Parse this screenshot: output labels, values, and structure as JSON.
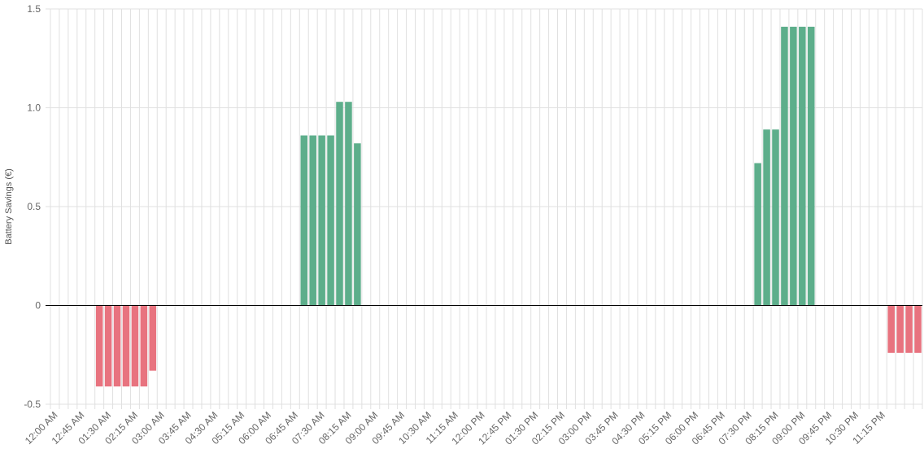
{
  "chart_data": {
    "type": "bar",
    "title": "",
    "xlabel": "",
    "ylabel": "Battery Savings (€)",
    "ylim": [
      -0.5,
      1.5
    ],
    "yticks": [
      -0.5,
      0,
      0.5,
      1.0,
      1.5
    ],
    "ytick_labels": [
      "-0.5",
      "0",
      "0.5",
      "1.0",
      "1.5"
    ],
    "grid": true,
    "legend": "none",
    "colors": {
      "positive": "#5dae8b",
      "negative": "#e8737f",
      "grid": "#e0e0e0",
      "zero_line": "#000000"
    },
    "x_labels": [
      "12:00 AM",
      "12:45 AM",
      "01:30 AM",
      "02:15 AM",
      "03:00 AM",
      "03:45 AM",
      "04:30 AM",
      "05:15 AM",
      "06:00 AM",
      "06:45 AM",
      "07:30 AM",
      "08:15 AM",
      "09:00 AM",
      "09:45 AM",
      "10:30 AM",
      "11:15 AM",
      "12:00 PM",
      "12:45 PM",
      "01:30 PM",
      "02:15 PM",
      "03:00 PM",
      "03:45 PM",
      "04:30 PM",
      "05:15 PM",
      "06:00 PM",
      "06:45 PM",
      "07:30 PM",
      "08:15 PM",
      "09:00 PM",
      "09:45 PM",
      "10:30 PM",
      "11:15 PM"
    ],
    "interval_minutes": 15,
    "values": [
      0,
      0,
      0,
      0,
      0,
      -0.41,
      -0.41,
      -0.41,
      -0.41,
      -0.41,
      -0.41,
      -0.33,
      0,
      0,
      0,
      0,
      0,
      0,
      0,
      0,
      0,
      0,
      0,
      0,
      0,
      0,
      0,
      0,
      0.86,
      0.86,
      0.86,
      0.86,
      1.03,
      1.03,
      0.82,
      0,
      0,
      0,
      0,
      0,
      0,
      0,
      0,
      0,
      0,
      0,
      0,
      0,
      0,
      0,
      0,
      0,
      0,
      0,
      0,
      0,
      0,
      0,
      0,
      0,
      0,
      0,
      0,
      0,
      0,
      0,
      0,
      0,
      0,
      0,
      0,
      0,
      0,
      0,
      0,
      0,
      0,
      0,
      0,
      0.72,
      0.89,
      0.89,
      1.41,
      1.41,
      1.41,
      1.41,
      0,
      0,
      0,
      0,
      0,
      0,
      0,
      0,
      -0.24,
      -0.24,
      -0.24,
      -0.24
    ]
  }
}
